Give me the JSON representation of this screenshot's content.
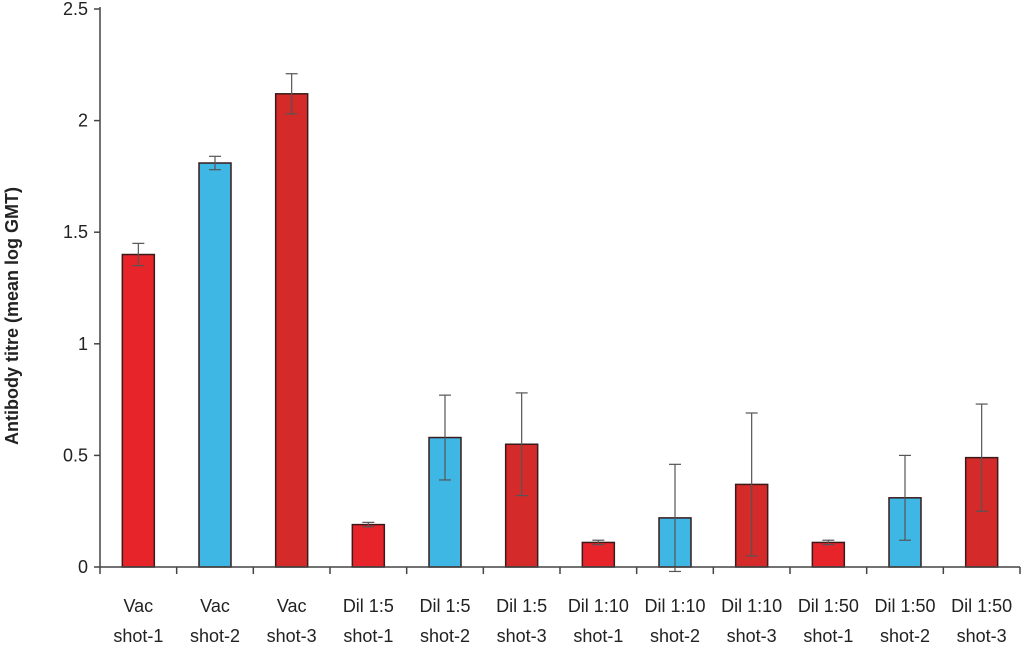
{
  "chart_data": {
    "type": "bar",
    "title": "",
    "xlabel": "",
    "ylabel": "Antibody titre (mean log GMT)",
    "ylim": [
      0,
      2.5
    ],
    "yticks": [
      "0",
      "0.5",
      "1",
      "1.5",
      "2",
      "2.5"
    ],
    "ytick_values": [
      0,
      0.5,
      1,
      1.5,
      2,
      2.5
    ],
    "grid": false,
    "categories": [
      {
        "line1": "Vac",
        "line2": "shot-1"
      },
      {
        "line1": "Vac",
        "line2": "shot-2"
      },
      {
        "line1": "Vac",
        "line2": "shot-3"
      },
      {
        "line1": "Dil 1:5",
        "line2": "shot-1"
      },
      {
        "line1": "Dil 1:5",
        "line2": "shot-2"
      },
      {
        "line1": "Dil 1:5",
        "line2": "shot-3"
      },
      {
        "line1": "Dil 1:10",
        "line2": "shot-1"
      },
      {
        "line1": "Dil 1:10",
        "line2": "shot-2"
      },
      {
        "line1": "Dil 1:10",
        "line2": "shot-3"
      },
      {
        "line1": "Dil 1:50",
        "line2": "shot-1"
      },
      {
        "line1": "Dil 1:50",
        "line2": "shot-2"
      },
      {
        "line1": "Dil 1:50",
        "line2": "shot-3"
      }
    ],
    "values": [
      1.4,
      1.81,
      2.12,
      0.19,
      0.58,
      0.55,
      0.11,
      0.22,
      0.37,
      0.11,
      0.31,
      0.49
    ],
    "errors": [
      0.05,
      0.03,
      0.09,
      0.01,
      0.19,
      0.23,
      0.01,
      0.24,
      0.32,
      0.01,
      0.19,
      0.24
    ],
    "colors": [
      "#e8242b",
      "#3fb7e5",
      "#d42a2a",
      "#e8242b",
      "#3fb7e5",
      "#d42a2a",
      "#e8242b",
      "#3fb7e5",
      "#d42a2a",
      "#e8242b",
      "#3fb7e5",
      "#d42a2a"
    ]
  }
}
